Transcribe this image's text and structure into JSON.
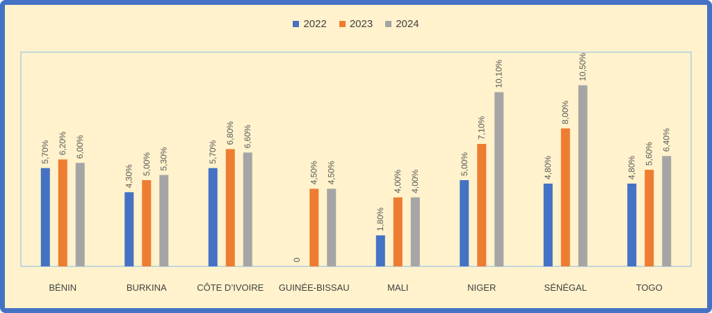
{
  "colors": {
    "frame": "#4472c4",
    "background": "#fff2cc",
    "plot_border": "#9dc3e6",
    "text": "#404040"
  },
  "chart_data": {
    "type": "bar",
    "categories": [
      "BÉNIN",
      "BURKINA",
      "CÔTE D’IVOIRE",
      "GUINÉE-BISSAU",
      "MALI",
      "NIGER",
      "SÉNÉGAL",
      "TOGO"
    ],
    "series": [
      {
        "name": "2022",
        "color": "#4472c4",
        "values": [
          5.7,
          4.3,
          5.7,
          0,
          1.8,
          5.0,
          4.8,
          4.8
        ],
        "labels": [
          "5,70%",
          "4,30%",
          "5,70%",
          "0",
          "1,80%",
          "5,00%",
          "4,80%",
          "4,80%"
        ]
      },
      {
        "name": "2023",
        "color": "#ed7d31",
        "values": [
          6.2,
          5.0,
          6.8,
          4.5,
          4.0,
          7.1,
          8.0,
          5.6
        ],
        "labels": [
          "6,20%",
          "5,00%",
          "6,80%",
          "4,50%",
          "4,00%",
          "7,10%",
          "8,00%",
          "5,60%"
        ]
      },
      {
        "name": "2024",
        "color": "#a5a5a5",
        "values": [
          6.0,
          5.3,
          6.6,
          4.5,
          4.0,
          10.1,
          10.5,
          6.4
        ],
        "labels": [
          "6,00%",
          "5,30%",
          "6,60%",
          "4,50%",
          "4,00%",
          "10,10%",
          "10,50%",
          "6,40%"
        ]
      }
    ],
    "title": "",
    "xlabel": "",
    "ylabel": "",
    "ylim": [
      0,
      12
    ],
    "grid": false,
    "legend": "top-center"
  }
}
